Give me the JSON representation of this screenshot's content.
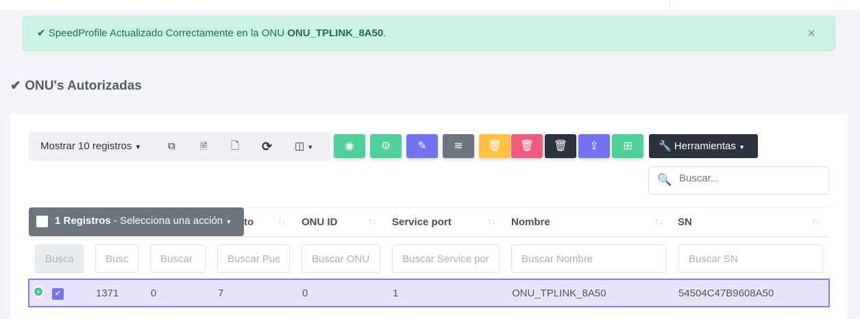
{
  "alert": {
    "prefix": "SpeedProfile Actualizado Correctamente en la ONU ",
    "onu": "ONU_TPLINK_8A50",
    "suffix": ".",
    "close": "×"
  },
  "section_title": "ONU's Autorizadas",
  "toolbar": {
    "show_label": "Mostrar 10 registros",
    "tools_label": "Herramientas"
  },
  "action_colors": {
    "view": "#4fd09a",
    "config": "#4fd09a",
    "edit": "#7173f0",
    "wifi": "#6c757d",
    "delete_warn": "#ffc142",
    "delete": "#f35b7e",
    "delete_dark": "#2c323f",
    "upload": "#7173f0",
    "network": "#4fd09a"
  },
  "search": {
    "placeholder": "Buscar..."
  },
  "selection": {
    "count": "1 Registros",
    "action": " - Selecciona una acción"
  },
  "columns": {
    "c3_partial": "to",
    "onu_id": "ONU ID",
    "service_port": "Service port",
    "nombre": "Nombre",
    "sn": "SN"
  },
  "filters": [
    "Buscar",
    "Buscar",
    "Buscar",
    "Buscar Puerto",
    "Buscar ONU ID",
    "Buscar Service port",
    "Buscar Nombre",
    "Buscar SN"
  ],
  "rows": [
    {
      "id": "1371",
      "c3": "0",
      "puerto": "7",
      "onu_id": "0",
      "service_port": "1",
      "nombre": "ONU_TPLINK_8A50",
      "sn": "54504C47B9608A50"
    }
  ]
}
